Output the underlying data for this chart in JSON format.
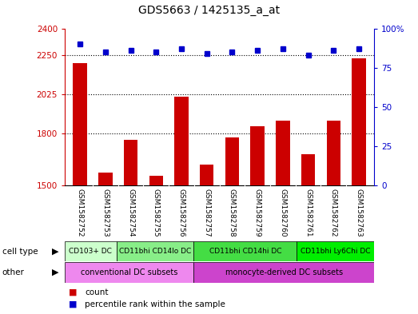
{
  "title": "GDS5663 / 1425135_a_at",
  "samples": [
    "GSM1582752",
    "GSM1582753",
    "GSM1582754",
    "GSM1582755",
    "GSM1582756",
    "GSM1582757",
    "GSM1582758",
    "GSM1582759",
    "GSM1582760",
    "GSM1582761",
    "GSM1582762",
    "GSM1582763"
  ],
  "counts": [
    2200,
    1575,
    1760,
    1555,
    2010,
    1620,
    1775,
    1840,
    1870,
    1680,
    1870,
    2230
  ],
  "percentiles": [
    90,
    85,
    86,
    85,
    87,
    84,
    85,
    86,
    87,
    83,
    86,
    87
  ],
  "ylim_left": [
    1500,
    2400
  ],
  "ylim_right": [
    0,
    100
  ],
  "yticks_left": [
    1500,
    1800,
    2025,
    2250,
    2400
  ],
  "yticks_right": [
    0,
    25,
    50,
    75,
    100
  ],
  "bar_color": "#cc0000",
  "dot_color": "#0000cc",
  "cell_type_groups": [
    {
      "label": "CD103+ DC",
      "start": 0,
      "end": 2,
      "color": "#ccffcc"
    },
    {
      "label": "CD11bhi CD14lo DC",
      "start": 2,
      "end": 5,
      "color": "#88ee88"
    },
    {
      "label": "CD11bhi CD14hi DC",
      "start": 5,
      "end": 9,
      "color": "#44dd44"
    },
    {
      "label": "CD11bhi Ly6Chi DC",
      "start": 9,
      "end": 12,
      "color": "#00ee00"
    }
  ],
  "other_groups": [
    {
      "label": "conventional DC subsets",
      "start": 0,
      "end": 5,
      "color": "#ee88ee"
    },
    {
      "label": "monocyte-derived DC subsets",
      "start": 5,
      "end": 12,
      "color": "#cc44cc"
    }
  ],
  "cell_type_label": "cell type",
  "other_label": "other",
  "legend_count": "count",
  "legend_percentile": "percentile rank within the sample",
  "bg_color": "#ffffff",
  "bar_color_left": "#cc0000",
  "axis_color_right": "#0000cc",
  "sample_box_color": "#cccccc",
  "grid_hlines": [
    1800,
    2025,
    2250
  ]
}
